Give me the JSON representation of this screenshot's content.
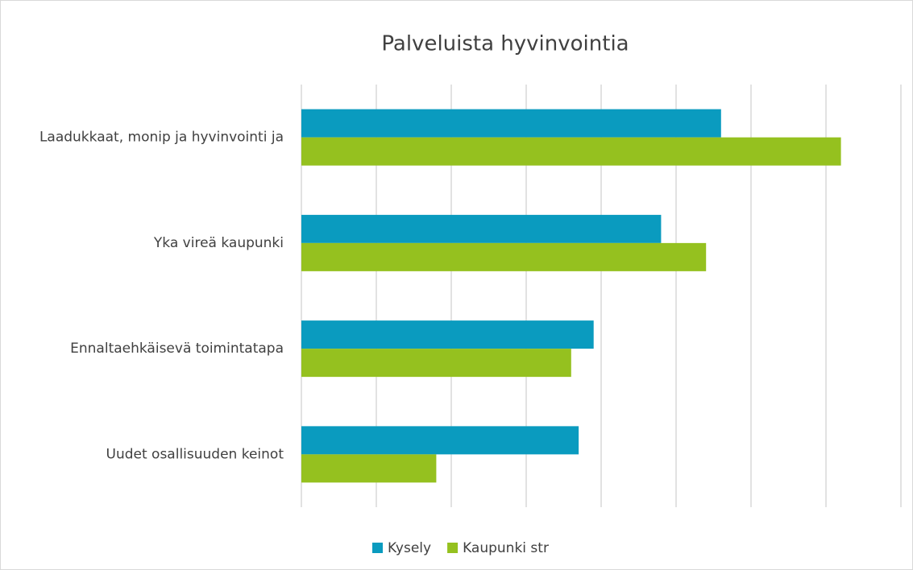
{
  "chart_data": {
    "type": "barh",
    "title": "Palveluista hyvinvointia",
    "categories": [
      "Laadukkaat, monip ja hyvinvointi ja",
      "Yka vireä kaupunki",
      "Ennaltaehkäisevä toimintatapa",
      "Uudet osallisuuden keinot"
    ],
    "series": [
      {
        "name": "Kysely",
        "color": "#0a9bbf",
        "values": [
          5.6,
          4.8,
          3.9,
          3.7
        ]
      },
      {
        "name": "Kaupunki str",
        "color": "#95c11f",
        "values": [
          7.2,
          5.4,
          3.6,
          1.8
        ]
      }
    ],
    "xlim": [
      0,
      8
    ],
    "xticks": [
      0,
      1,
      2,
      3,
      4,
      5,
      6,
      7,
      8
    ],
    "grid": true,
    "legend": "bottom"
  }
}
